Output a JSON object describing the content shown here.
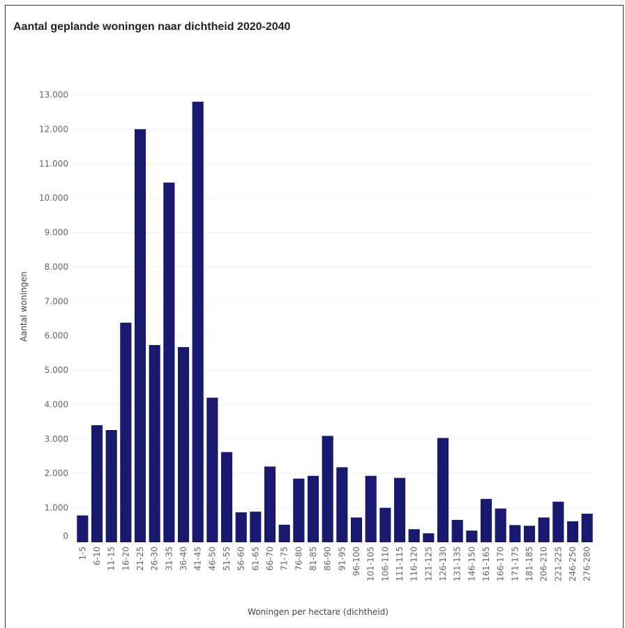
{
  "chart_data": {
    "type": "bar",
    "title": "Aantal geplande woningen naar dichtheid 2020-2040",
    "xlabel": "Woningen per hectare  (dichtheid)",
    "ylabel": "Aantal woningen",
    "ylim": [
      0,
      13000
    ],
    "yticks": [
      {
        "value": 0,
        "label": "0"
      },
      {
        "value": 1000,
        "label": "1.000"
      },
      {
        "value": 2000,
        "label": "2.000"
      },
      {
        "value": 3000,
        "label": "3.000"
      },
      {
        "value": 4000,
        "label": "4.000"
      },
      {
        "value": 5000,
        "label": "5.000"
      },
      {
        "value": 6000,
        "label": "6.000"
      },
      {
        "value": 7000,
        "label": "7.000"
      },
      {
        "value": 8000,
        "label": "8.000"
      },
      {
        "value": 9000,
        "label": "9.000"
      },
      {
        "value": 10000,
        "label": "10.000"
      },
      {
        "value": 11000,
        "label": "11.000"
      },
      {
        "value": 12000,
        "label": "12.000"
      },
      {
        "value": 13000,
        "label": "13.000"
      }
    ],
    "grid": true,
    "bar_color": "#191970",
    "categories": [
      "1-5",
      "6-10",
      "11-15",
      "16-20",
      "21-25",
      "26-30",
      "31-35",
      "36-40",
      "41-45",
      "46-50",
      "51-55",
      "56-60",
      "61-65",
      "66-70",
      "71-75",
      "76-80",
      "81-85",
      "86-90",
      "91-95",
      "96-100",
      "101-105",
      "106-110",
      "111-115",
      "116-120",
      "121-125",
      "126-130",
      "131-135",
      "146-150",
      "161-165",
      "166-170",
      "171-175",
      "181-185",
      "206-210",
      "221-225",
      "246-250",
      "276-280"
    ],
    "values": [
      780,
      3400,
      3260,
      6380,
      12000,
      5730,
      10450,
      5670,
      12800,
      4200,
      2620,
      870,
      890,
      2200,
      510,
      1850,
      1930,
      3090,
      2180,
      720,
      1930,
      1000,
      1870,
      380,
      260,
      3030,
      650,
      340,
      1260,
      980,
      500,
      480,
      720,
      1180,
      610,
      830
    ]
  }
}
